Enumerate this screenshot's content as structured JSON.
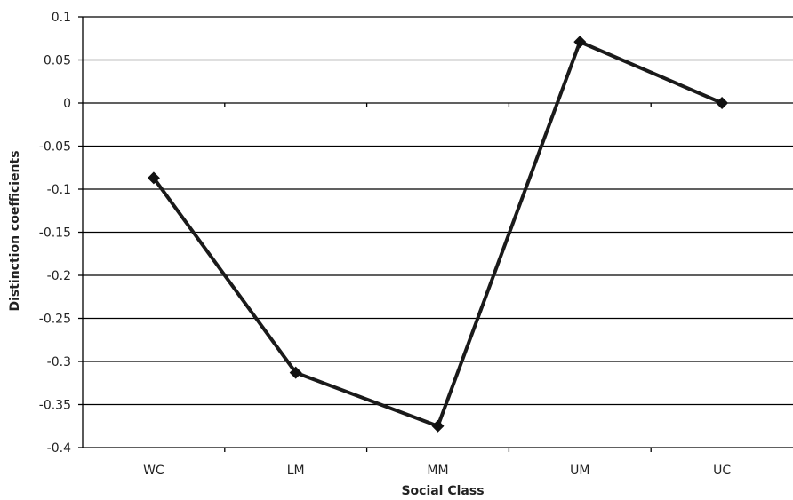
{
  "chart_data": {
    "type": "line",
    "categories": [
      "WC",
      "LM",
      "MM",
      "UM",
      "UC"
    ],
    "series": [
      {
        "values": [
          -0.087,
          -0.313,
          -0.375,
          0.071,
          0.0
        ]
      }
    ],
    "xlabel": "Social Class",
    "ylabel": "Distinction coefficients",
    "ylim": [
      -0.4,
      0.1
    ],
    "yticks": [
      "0.1",
      "0.05",
      "0",
      "-0.05",
      "-0.1",
      "-0.15",
      "-0.2",
      "-0.25",
      "-0.3",
      "-0.35",
      "-0.4"
    ],
    "grid": true,
    "marker": "diamond",
    "line_color": "#1a1a1a"
  }
}
